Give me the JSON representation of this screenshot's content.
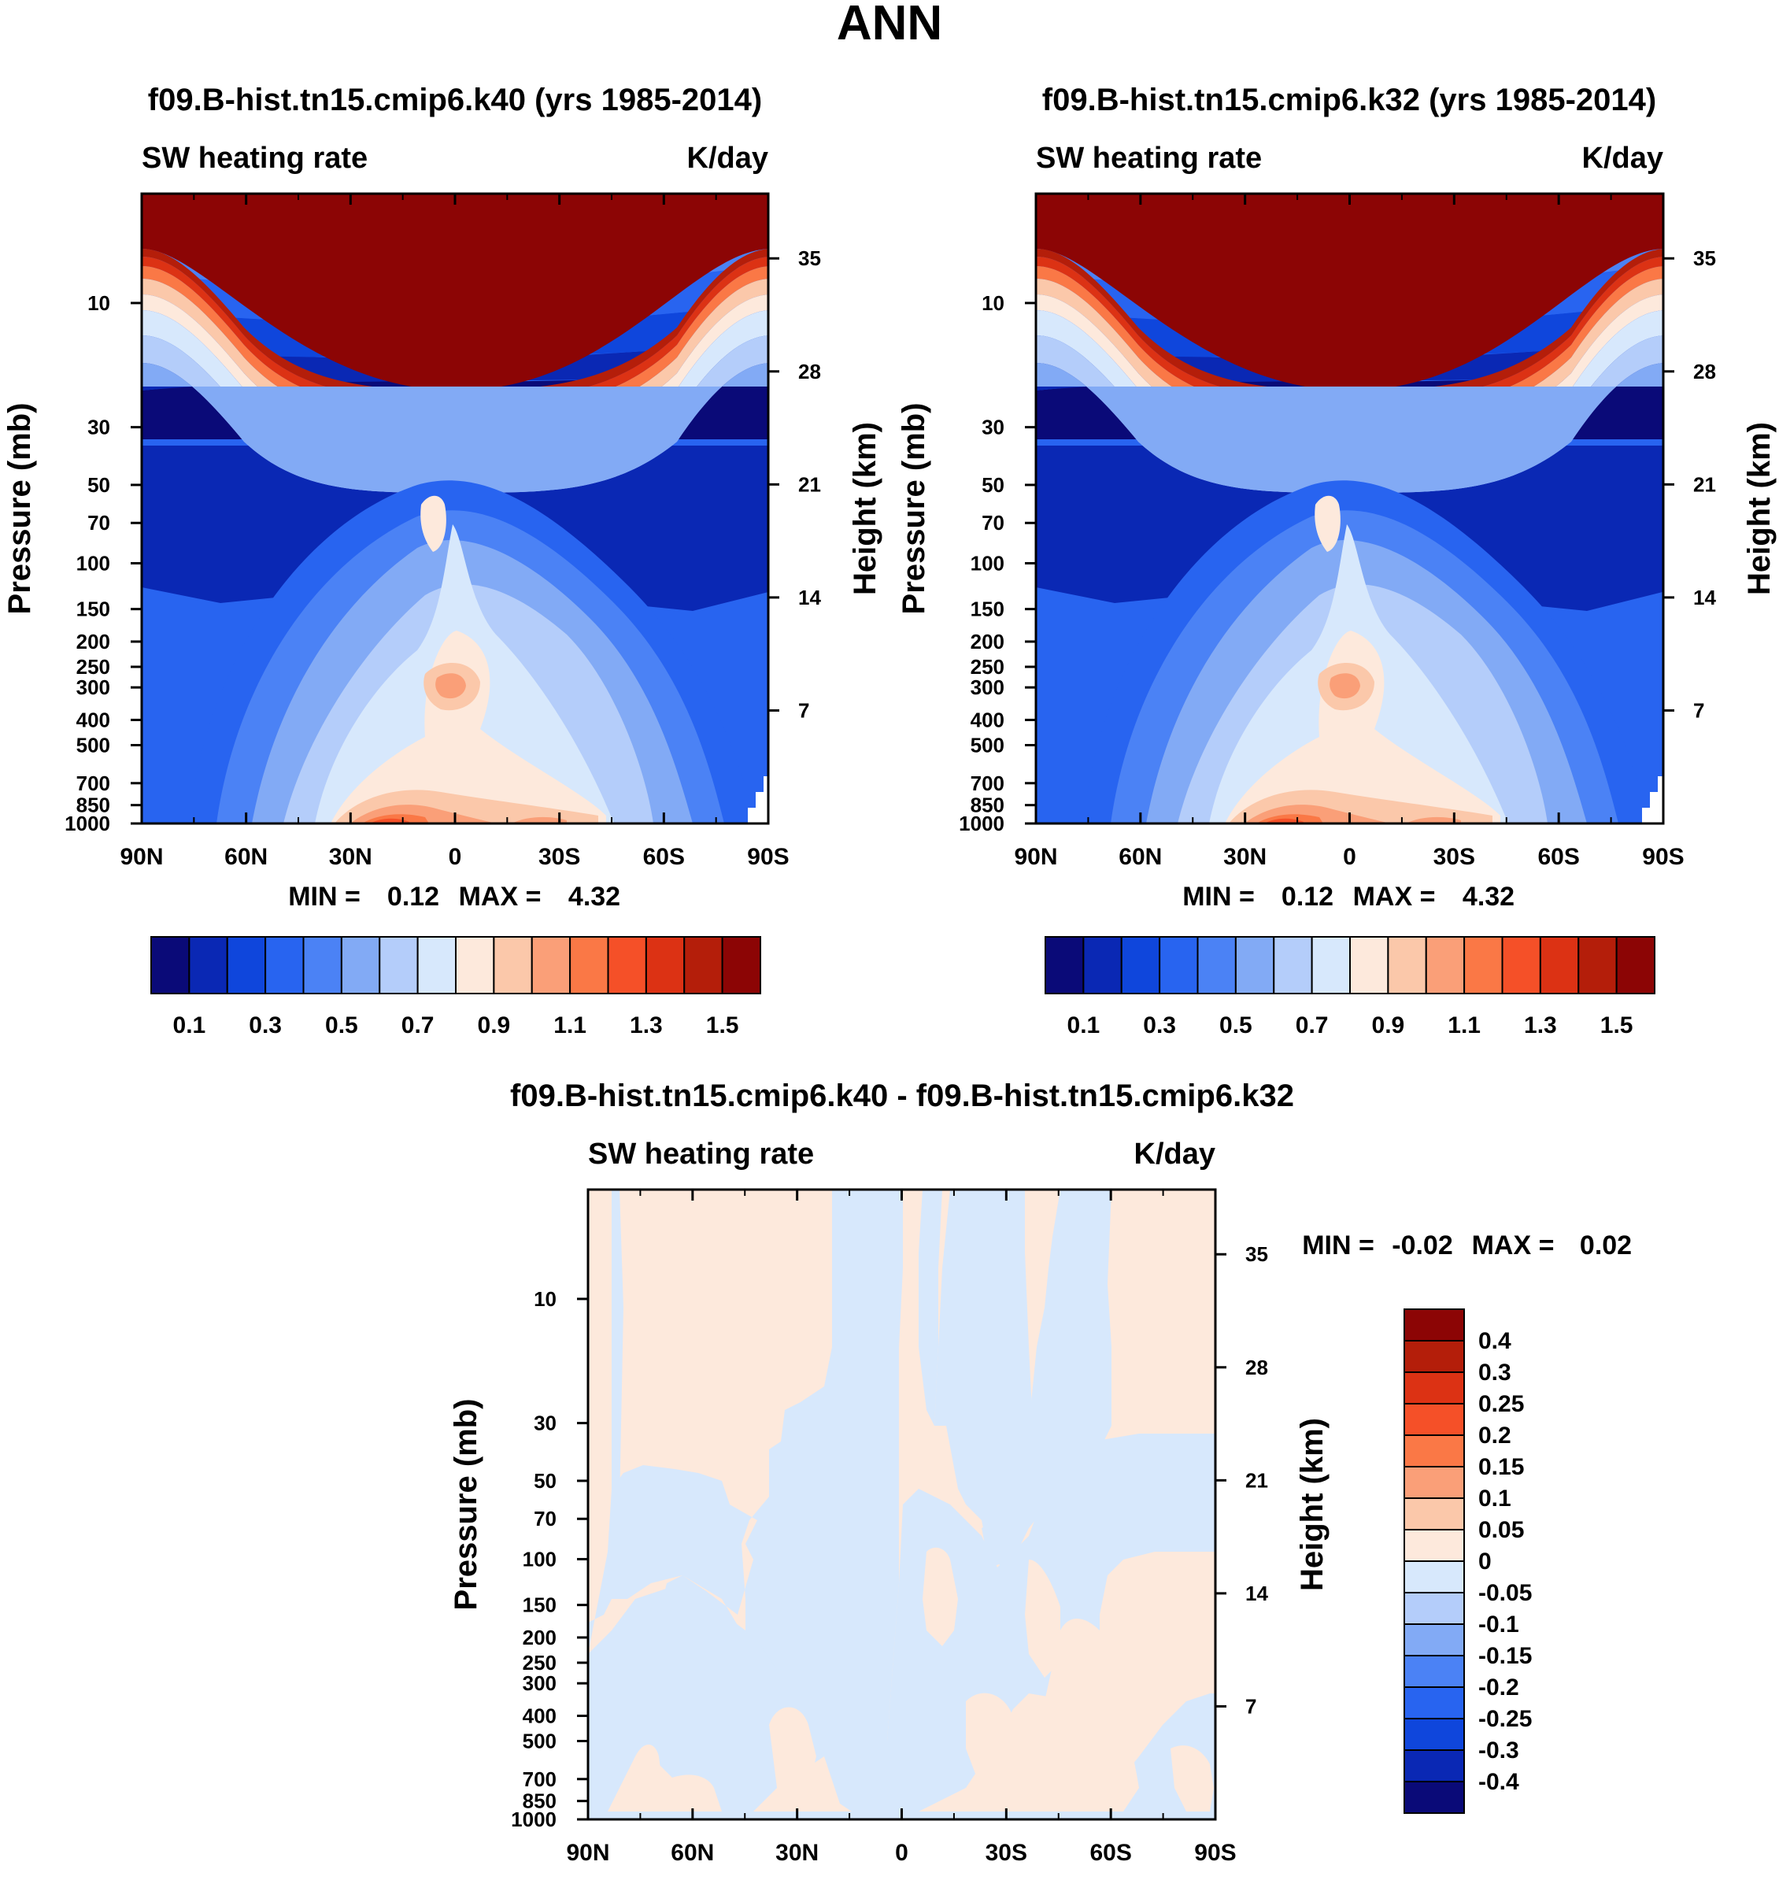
{
  "page_title": "ANN",
  "chart_data": [
    {
      "type": "heatmap",
      "title": "f09.B-hist.tn15.cmip6.k40 (yrs 1985-2014)",
      "left_string": "SW heating rate",
      "right_string": "K/day",
      "ylabel": "Pressure (mb)",
      "ylabel_right": "Height (km)",
      "x_ticks": [
        "90N",
        "60N",
        "30N",
        "0",
        "30S",
        "60S",
        "90S"
      ],
      "y_ticks": [
        "10",
        "30",
        "50",
        "70",
        "100",
        "150",
        "200",
        "250",
        "300",
        "400",
        "500",
        "700",
        "850",
        "1000"
      ],
      "y_ticks_right": [
        "35",
        "28",
        "21",
        "14",
        "7"
      ],
      "stats": {
        "min_label": "MIN =",
        "min": "0.12",
        "max_label": "MAX =",
        "max": "4.32"
      },
      "colorbar_labels": [
        "0.1",
        "0.3",
        "0.5",
        "0.7",
        "0.9",
        "1.1",
        "1.3",
        "1.5"
      ]
    },
    {
      "type": "heatmap",
      "title": "f09.B-hist.tn15.cmip6.k32 (yrs 1985-2014)",
      "left_string": "SW heating rate",
      "right_string": "K/day",
      "ylabel": "Pressure (mb)",
      "ylabel_right": "Height (km)",
      "x_ticks": [
        "90N",
        "60N",
        "30N",
        "0",
        "30S",
        "60S",
        "90S"
      ],
      "y_ticks": [
        "10",
        "30",
        "50",
        "70",
        "100",
        "150",
        "200",
        "250",
        "300",
        "400",
        "500",
        "700",
        "850",
        "1000"
      ],
      "y_ticks_right": [
        "35",
        "28",
        "21",
        "14",
        "7"
      ],
      "stats": {
        "min_label": "MIN =",
        "min": "0.12",
        "max_label": "MAX =",
        "max": "4.32"
      },
      "colorbar_labels": [
        "0.1",
        "0.3",
        "0.5",
        "0.7",
        "0.9",
        "1.1",
        "1.3",
        "1.5"
      ]
    },
    {
      "type": "heatmap",
      "title": "f09.B-hist.tn15.cmip6.k40 - f09.B-hist.tn15.cmip6.k32",
      "left_string": "SW heating rate",
      "right_string": "K/day",
      "ylabel": "Pressure (mb)",
      "ylabel_right": "Height (km)",
      "x_ticks": [
        "90N",
        "60N",
        "30N",
        "0",
        "30S",
        "60S",
        "90S"
      ],
      "y_ticks": [
        "10",
        "30",
        "50",
        "70",
        "100",
        "150",
        "200",
        "250",
        "300",
        "400",
        "500",
        "700",
        "850",
        "1000"
      ],
      "y_ticks_right": [
        "35",
        "28",
        "21",
        "14",
        "7"
      ],
      "stats": {
        "min_label": "MIN =",
        "min": "-0.02",
        "max_label": "MAX =",
        "max": "0.02"
      },
      "colorbar_labels": [
        "0.4",
        "0.3",
        "0.25",
        "0.2",
        "0.15",
        "0.1",
        "0.05",
        "0",
        "-0.05",
        "-0.1",
        "-0.15",
        "-0.2",
        "-0.25",
        "-0.3",
        "-0.4"
      ]
    }
  ],
  "colors": {
    "palette": [
      "#0a0a78",
      "#0a28b4",
      "#0f46dc",
      "#2864f0",
      "#4b82f5",
      "#82aaf5",
      "#b4cdfa",
      "#d7e8fc",
      "#fde9dc",
      "#fbc8aa",
      "#fa9f78",
      "#fa7846",
      "#f55028",
      "#dc3214",
      "#b41e0a",
      "#8c0505"
    ]
  }
}
